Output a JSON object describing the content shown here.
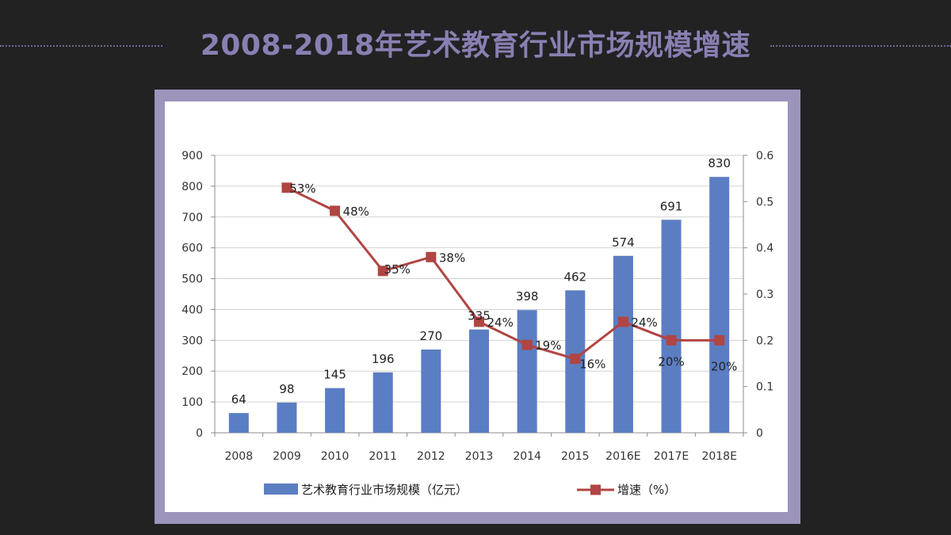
{
  "slide": {
    "title": "2008-2018年艺术教育行业市场规模增速"
  },
  "colors": {
    "background": "#222223",
    "title": "#8a7fb2",
    "frame": "#9d94bc",
    "bar": "#5b7ec2",
    "line": "#b04543"
  },
  "chart_data": {
    "type": "bar",
    "categories": [
      "2008",
      "2009",
      "2010",
      "2011",
      "2012",
      "2013",
      "2014",
      "2015",
      "2016E",
      "2017E",
      "2018E"
    ],
    "series": [
      {
        "name": "艺术教育行业市场规模（亿元）",
        "type": "bar",
        "axis": "left",
        "values": [
          64,
          98,
          145,
          196,
          270,
          335,
          398,
          462,
          574,
          691,
          830
        ],
        "labels": [
          "64",
          "98",
          "145",
          "196",
          "270",
          "335",
          "398",
          "462",
          "574",
          "691",
          "830"
        ]
      },
      {
        "name": "增速（%）",
        "type": "line",
        "axis": "right",
        "values": [
          null,
          0.53,
          0.48,
          0.35,
          0.38,
          0.24,
          0.19,
          0.16,
          0.24,
          0.2,
          0.2
        ],
        "labels": [
          "",
          "53%",
          "48%",
          "35%",
          "38%",
          "24%",
          "19%",
          "16%",
          "24%",
          "20%",
          "20%"
        ]
      }
    ],
    "y_left": {
      "range": [
        0,
        900
      ],
      "ticks": [
        "0",
        "100",
        "200",
        "300",
        "400",
        "500",
        "600",
        "700",
        "800",
        "900"
      ]
    },
    "y_right": {
      "range": [
        0,
        0.6
      ],
      "ticks": [
        "0",
        "0.1",
        "0.2",
        "0.3",
        "0.4",
        "0.5",
        "0.6"
      ]
    },
    "grid": "horizontal",
    "legend_position": "bottom"
  }
}
